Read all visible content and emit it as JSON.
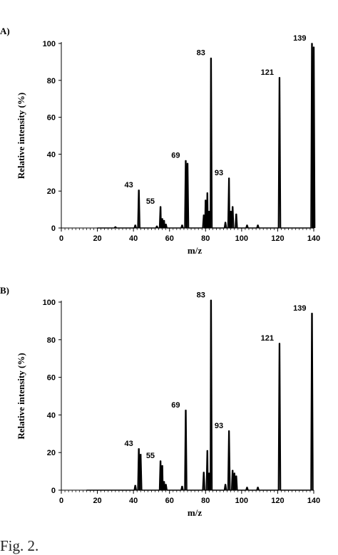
{
  "caption": "Fig. 2.",
  "chart_data": [
    {
      "type": "line",
      "panel_label": "A)",
      "xlabel": "m/z",
      "ylabel": "Relative intensity (%)",
      "xlim": [
        0,
        140
      ],
      "ylim": [
        0,
        100
      ],
      "xticks": [
        "0",
        "20",
        "40",
        "60",
        "80",
        "100",
        "120",
        "140"
      ],
      "yticks": [
        "0",
        "20",
        "40",
        "60",
        "80",
        "100"
      ],
      "grid": false,
      "legend": "none",
      "peaks": [
        {
          "x": 30,
          "y": 0.6
        },
        {
          "x": 41,
          "y": 1.5
        },
        {
          "x": 43,
          "y": 20.5
        },
        {
          "x": 53,
          "y": 1
        },
        {
          "x": 55,
          "y": 11.5
        },
        {
          "x": 56,
          "y": 5
        },
        {
          "x": 57,
          "y": 4
        },
        {
          "x": 58,
          "y": 2
        },
        {
          "x": 67,
          "y": 1.5
        },
        {
          "x": 69,
          "y": 36.5
        },
        {
          "x": 70,
          "y": 35
        },
        {
          "x": 79,
          "y": 7
        },
        {
          "x": 80,
          "y": 15
        },
        {
          "x": 81,
          "y": 19
        },
        {
          "x": 82,
          "y": 9
        },
        {
          "x": 83,
          "y": 92
        },
        {
          "x": 91,
          "y": 3
        },
        {
          "x": 93,
          "y": 27
        },
        {
          "x": 94,
          "y": 9
        },
        {
          "x": 95,
          "y": 11.5
        },
        {
          "x": 97,
          "y": 7.5
        },
        {
          "x": 103,
          "y": 1.5
        },
        {
          "x": 109,
          "y": 1.5
        },
        {
          "x": 121,
          "y": 81.5
        },
        {
          "x": 139,
          "y": 100
        },
        {
          "x": 140,
          "y": 98
        }
      ],
      "annotations": [
        {
          "text": "43",
          "x": 43,
          "y": 20.5
        },
        {
          "text": "55",
          "x": 55,
          "y": 11.5
        },
        {
          "text": "69",
          "x": 69,
          "y": 36.5
        },
        {
          "text": "83",
          "x": 83,
          "y": 92
        },
        {
          "text": "93",
          "x": 93,
          "y": 27
        },
        {
          "text": "121",
          "x": 121,
          "y": 81.5
        },
        {
          "text": "139",
          "x": 139,
          "y": 100
        }
      ]
    },
    {
      "type": "line",
      "panel_label": "B)",
      "xlabel": "m/z",
      "ylabel": "Relative intensity (%)",
      "xlim": [
        0,
        140
      ],
      "ylim": [
        0,
        100
      ],
      "xticks": [
        "0",
        "20",
        "40",
        "60",
        "80",
        "100",
        "120",
        "140"
      ],
      "yticks": [
        "0",
        "20",
        "40",
        "60",
        "80",
        "100"
      ],
      "grid": false,
      "legend": "none",
      "peaks": [
        {
          "x": 41,
          "y": 2.5
        },
        {
          "x": 43,
          "y": 22
        },
        {
          "x": 44,
          "y": 19
        },
        {
          "x": 55,
          "y": 15.5
        },
        {
          "x": 56,
          "y": 13
        },
        {
          "x": 57,
          "y": 4.5
        },
        {
          "x": 58,
          "y": 3
        },
        {
          "x": 67,
          "y": 2
        },
        {
          "x": 69,
          "y": 42.5
        },
        {
          "x": 79,
          "y": 9.5
        },
        {
          "x": 81,
          "y": 21
        },
        {
          "x": 82,
          "y": 9
        },
        {
          "x": 83,
          "y": 101
        },
        {
          "x": 91,
          "y": 3
        },
        {
          "x": 93,
          "y": 31.5
        },
        {
          "x": 95,
          "y": 10.5
        },
        {
          "x": 96,
          "y": 9
        },
        {
          "x": 97,
          "y": 7.5
        },
        {
          "x": 103,
          "y": 1.5
        },
        {
          "x": 109,
          "y": 1.5
        },
        {
          "x": 121,
          "y": 78
        },
        {
          "x": 139,
          "y": 94
        }
      ],
      "annotations": [
        {
          "text": "43",
          "x": 43,
          "y": 22
        },
        {
          "text": "55",
          "x": 55,
          "y": 15.5
        },
        {
          "text": "69",
          "x": 69,
          "y": 42.5
        },
        {
          "text": "83",
          "x": 83,
          "y": 101
        },
        {
          "text": "93",
          "x": 93,
          "y": 31.5
        },
        {
          "text": "121",
          "x": 121,
          "y": 78
        },
        {
          "text": "139",
          "x": 139,
          "y": 94
        }
      ]
    }
  ]
}
